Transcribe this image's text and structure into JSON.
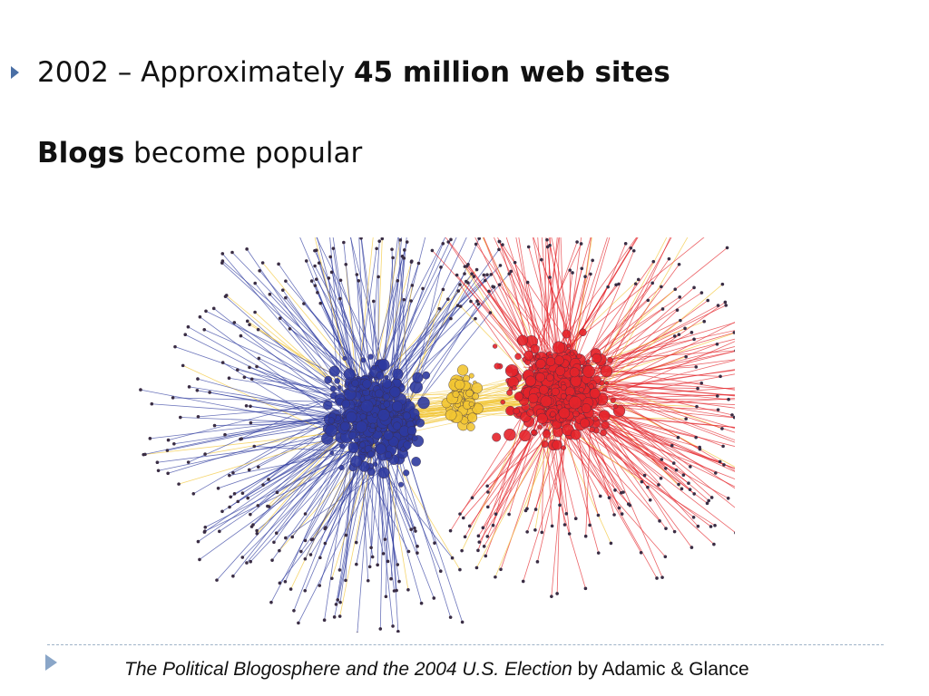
{
  "slide": {
    "bullet": {
      "prefix": "2002 – Approximately ",
      "bold": "45 million web sites"
    },
    "sub": {
      "bold": "Blogs",
      "rest": " become popular"
    },
    "caption": {
      "italic": "The Political Blogosphere and the 2004 U.S. Election",
      "rest": " by Adamic & Glance"
    }
  },
  "graph": {
    "colors": {
      "left_cluster": "#2e3a9e",
      "right_cluster": "#e4232a",
      "bridge": "#f2c532",
      "node": "#3a2d44"
    }
  }
}
